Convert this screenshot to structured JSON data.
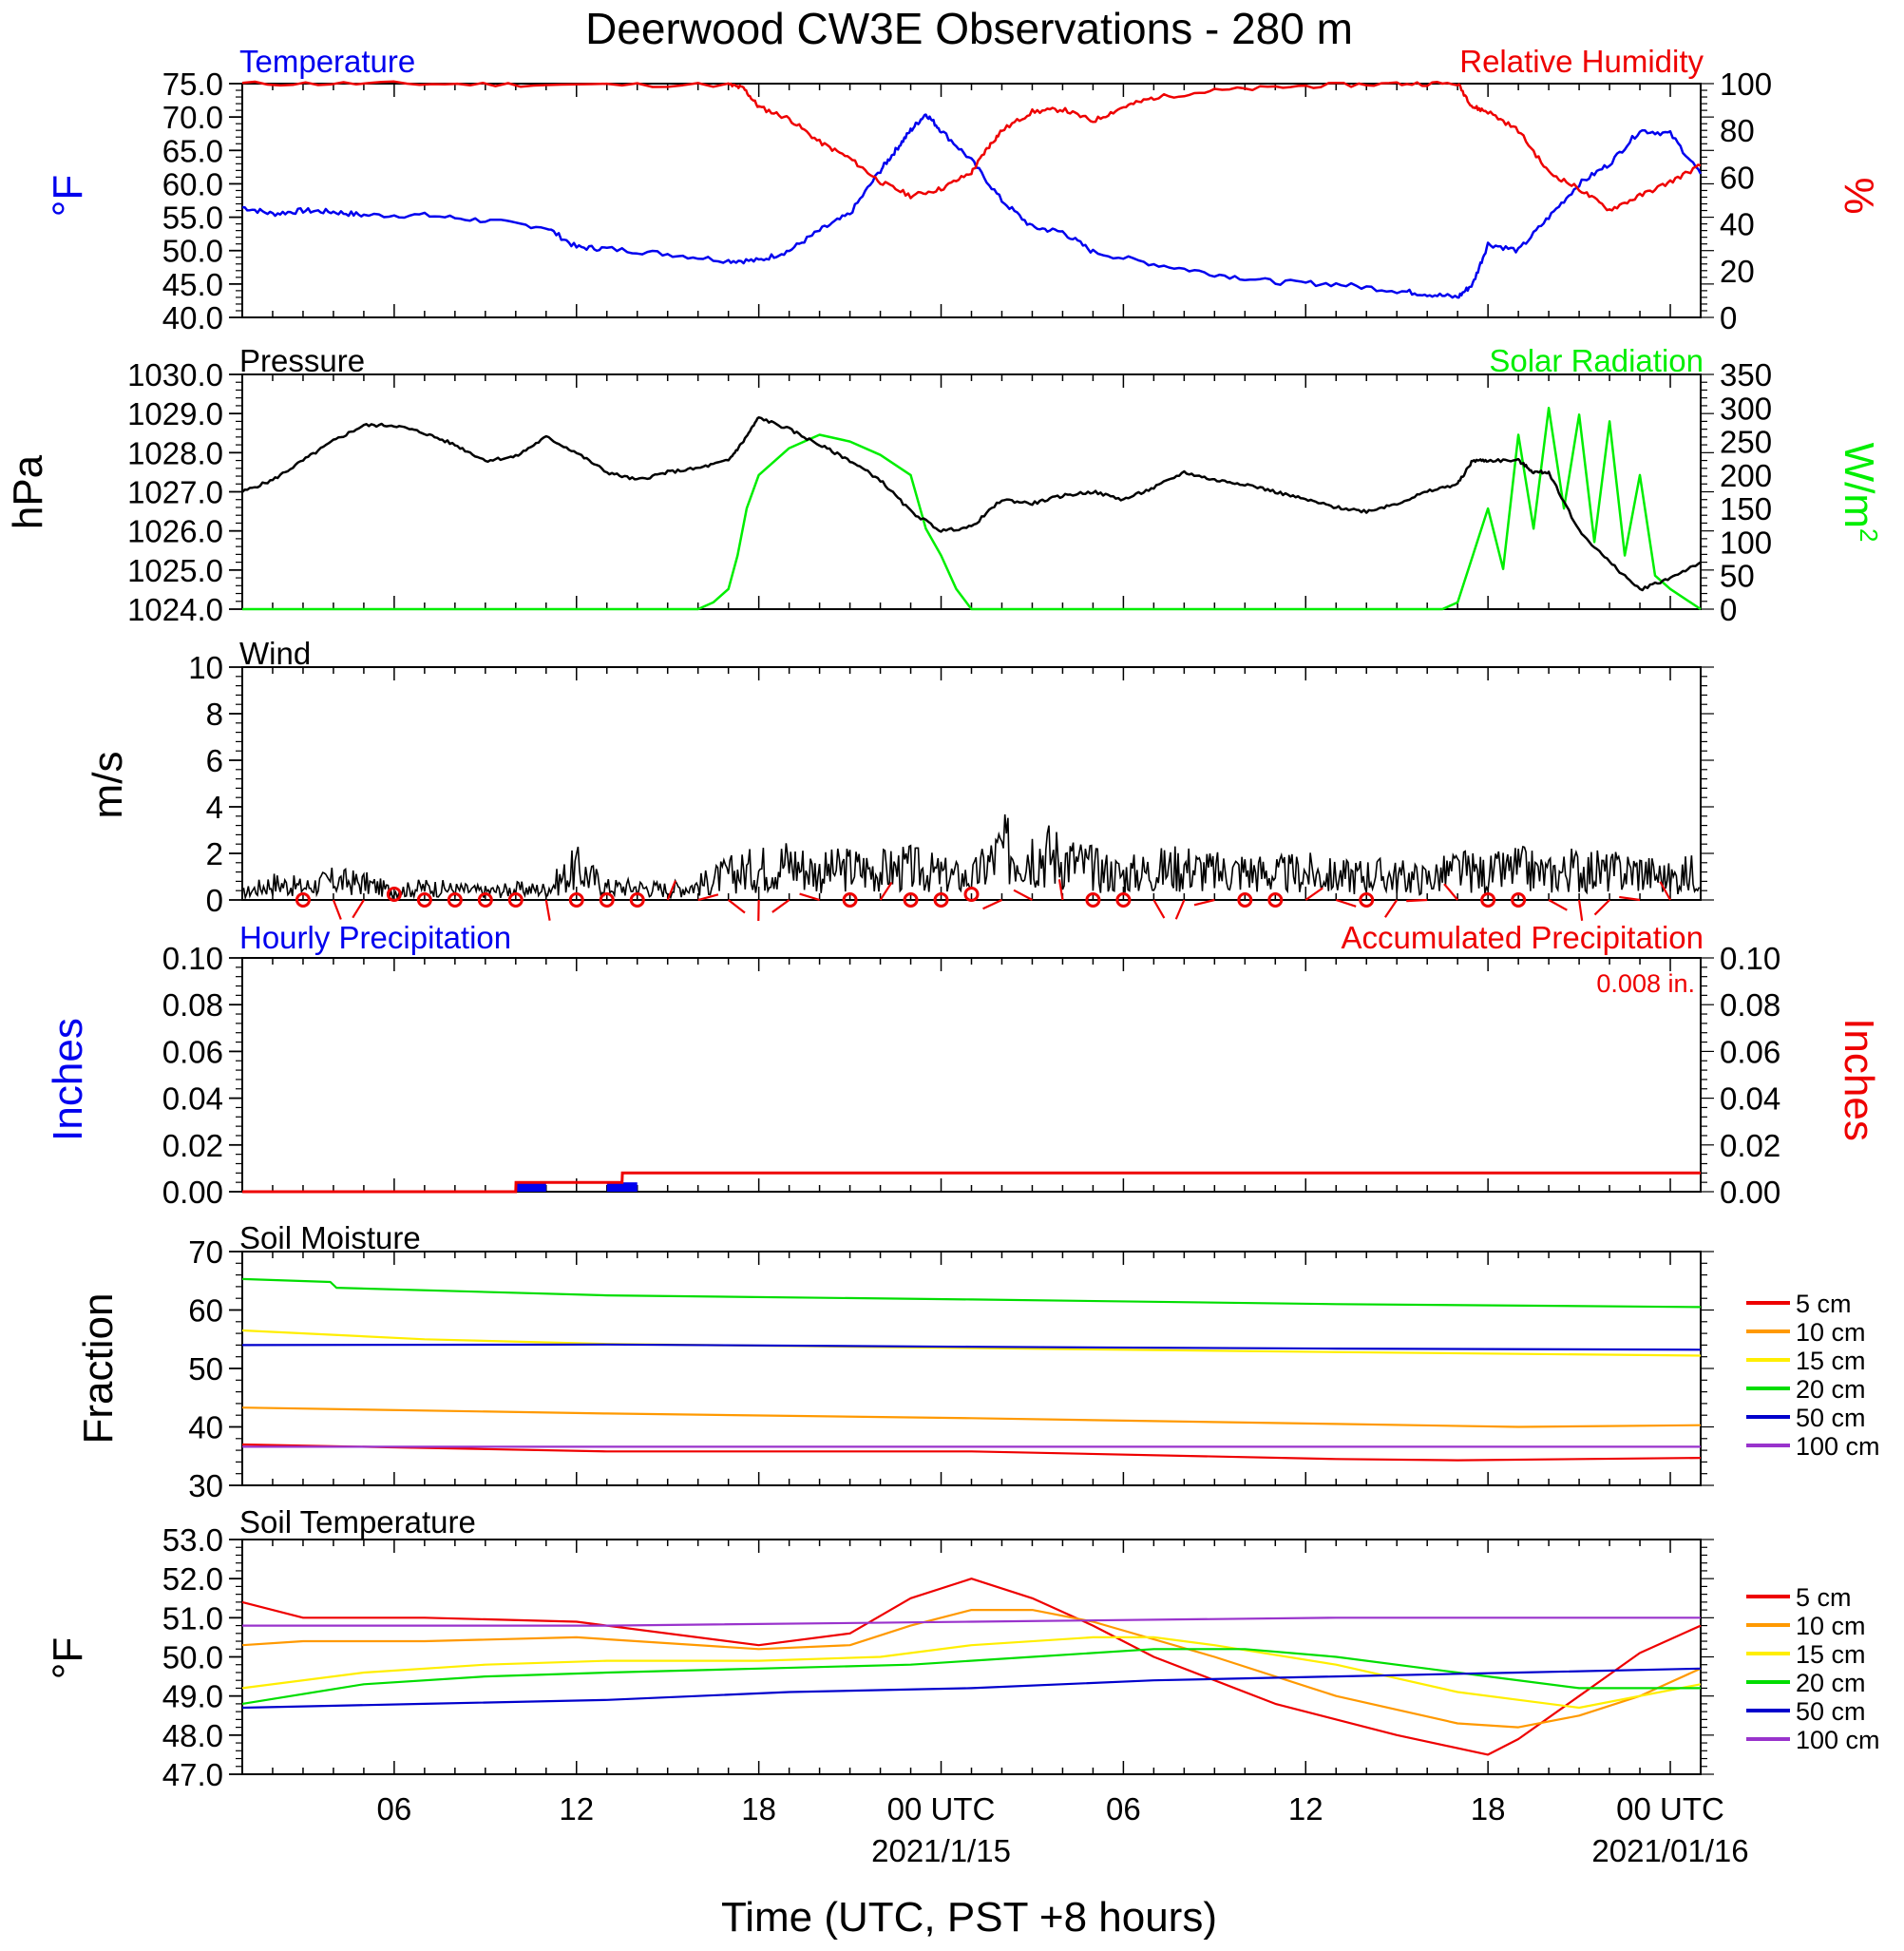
{
  "title": "Deerwood CW3E Observations - 280 m",
  "x_axis": {
    "title": "Time (UTC, PST +8 hours)",
    "range_hours": [
      0,
      48
    ],
    "ticks": [
      {
        "h": 5,
        "label": "06"
      },
      {
        "h": 11,
        "label": "12"
      },
      {
        "h": 17,
        "label": "18"
      },
      {
        "h": 23,
        "label": "00 UTC"
      },
      {
        "h": 29,
        "label": "06"
      },
      {
        "h": 35,
        "label": "12"
      },
      {
        "h": 41,
        "label": "18"
      },
      {
        "h": 47,
        "label": "00 UTC"
      }
    ],
    "date_labels": [
      {
        "h": 23,
        "label": "2021/1/15"
      },
      {
        "h": 47,
        "label": "2021/01/16"
      }
    ]
  },
  "panels": {
    "temp": {
      "left_title": "Temperature",
      "right_title": "Relative Humidity",
      "left_unit": "°F",
      "right_unit": "%",
      "left_ticks": [
        "75.0",
        "70.0",
        "65.0",
        "60.0",
        "55.0",
        "50.0",
        "45.0",
        "40.0"
      ],
      "right_ticks": [
        "100",
        "80",
        "60",
        "40",
        "20",
        "0"
      ]
    },
    "pressure": {
      "left_title": "Pressure",
      "right_title": "Solar Radiation",
      "left_unit": "hPa",
      "right_unit": "W/m",
      "right_unit_sup": "2",
      "left_ticks": [
        "1030.0",
        "1029.0",
        "1028.0",
        "1027.0",
        "1026.0",
        "1025.0",
        "1024.0"
      ],
      "right_ticks": [
        "350",
        "300",
        "250",
        "200",
        "150",
        "100",
        "50",
        "0"
      ]
    },
    "wind": {
      "left_title": "Wind",
      "left_unit": "m/s",
      "left_ticks": [
        "10",
        "8",
        "6",
        "4",
        "2",
        "0"
      ]
    },
    "precip": {
      "left_title": "Hourly Precipitation",
      "right_title": "Accumulated Precipitation",
      "total_label": "0.008 in.",
      "left_unit": "Inches",
      "right_unit": "Inches",
      "ticks": [
        "0.10",
        "0.08",
        "0.06",
        "0.04",
        "0.02",
        "0.00"
      ]
    },
    "soil_moisture": {
      "left_title": "Soil Moisture",
      "left_unit": "Fraction",
      "left_ticks": [
        "70",
        "60",
        "50",
        "40",
        "30"
      ]
    },
    "soil_temp": {
      "left_title": "Soil Temperature",
      "left_unit": "°F",
      "left_ticks": [
        "53.0",
        "52.0",
        "51.0",
        "50.0",
        "49.0",
        "48.0",
        "47.0"
      ]
    }
  },
  "legend": [
    {
      "label": "5 cm",
      "color": "#ee0000"
    },
    {
      "label": "10 cm",
      "color": "#ff9900"
    },
    {
      "label": "15 cm",
      "color": "#ffee00"
    },
    {
      "label": "20 cm",
      "color": "#00dd00"
    },
    {
      "label": "50 cm",
      "color": "#0000cc"
    },
    {
      "label": "100 cm",
      "color": "#9933cc"
    }
  ],
  "colors": {
    "temperature": "#0000ee",
    "humidity": "#ee0000",
    "pressure": "#000000",
    "solar": "#00ee00",
    "wind": "#000000",
    "wind_barb": "#ee0000",
    "hourly_precip": "#0000ee",
    "accum_precip": "#ee0000"
  },
  "chart_data": [
    {
      "type": "line",
      "panel": "temp",
      "xlabel": "Time (UTC, PST +8 hours)",
      "ylim_left": [
        40,
        75
      ],
      "ylim_right": [
        0,
        100
      ],
      "series": [
        {
          "name": "Temperature",
          "axis": "left",
          "x": [
            0,
            1,
            2,
            3,
            4,
            6,
            8,
            10,
            11,
            12,
            14,
            16,
            17,
            18,
            19,
            20,
            21,
            21.5,
            22,
            22.5,
            23,
            24,
            25,
            26,
            27,
            28,
            30,
            32,
            34,
            36,
            38,
            39,
            40,
            40.5,
            41,
            42,
            43,
            44,
            45,
            46,
            47,
            48
          ],
          "y": [
            56.5,
            55.5,
            56,
            55.8,
            55.3,
            55.3,
            54.5,
            53.5,
            50.5,
            50.3,
            49.5,
            48.5,
            48.5,
            50,
            53,
            55.5,
            62,
            65,
            68,
            70.5,
            68,
            63.5,
            57.5,
            53.5,
            52.8,
            49.8,
            48,
            46.5,
            45.3,
            45,
            44,
            43.5,
            43,
            45,
            51,
            50,
            55,
            60,
            63,
            68,
            67.5,
            61.5
          ]
        },
        {
          "name": "Relative Humidity",
          "axis": "right",
          "x": [
            0,
            5,
            10,
            16,
            16.5,
            17,
            18,
            19,
            20,
            21,
            22,
            23,
            24,
            24.5,
            25,
            26,
            27,
            28,
            29,
            30,
            32,
            35,
            38,
            40,
            40.5,
            41,
            42,
            43,
            44,
            45,
            46,
            47,
            48
          ],
          "y": [
            100,
            100,
            99.5,
            99.5,
            98,
            90,
            85,
            75,
            68,
            58,
            52,
            55,
            62,
            72,
            80,
            88,
            89,
            84,
            90,
            94,
            97,
            99,
            100,
            100,
            90,
            88,
            80,
            62,
            55,
            46,
            52,
            58,
            65
          ]
        }
      ]
    },
    {
      "type": "line",
      "panel": "pressure",
      "ylim_left": [
        1024,
        1030
      ],
      "ylim_right": [
        0,
        350
      ],
      "series": [
        {
          "name": "Pressure",
          "axis": "left",
          "x": [
            0,
            1,
            2,
            3,
            4,
            5,
            6,
            7,
            8,
            9,
            10,
            11,
            12,
            13,
            14,
            15,
            16,
            16.5,
            17,
            18,
            19,
            20,
            21,
            22,
            23,
            24,
            25,
            26,
            27,
            28,
            29,
            30,
            31,
            32,
            33,
            34,
            35,
            36,
            37,
            38,
            39,
            40,
            40.5,
            41,
            42,
            42.5,
            43,
            44,
            45,
            46,
            47,
            48
          ],
          "y": [
            1027,
            1027.3,
            1027.8,
            1028.3,
            1028.7,
            1028.7,
            1028.5,
            1028.2,
            1027.8,
            1027.9,
            1028.4,
            1028,
            1027.5,
            1027.3,
            1027.5,
            1027.6,
            1027.8,
            1028.3,
            1028.9,
            1028.6,
            1028.2,
            1027.8,
            1027.3,
            1026.5,
            1026,
            1026.1,
            1026.8,
            1026.7,
            1026.9,
            1027,
            1026.8,
            1027.1,
            1027.5,
            1027.3,
            1027.2,
            1027,
            1026.8,
            1026.6,
            1026.5,
            1026.7,
            1027,
            1027.2,
            1027.8,
            1027.8,
            1027.8,
            1027.5,
            1027.5,
            1026,
            1025.2,
            1024.5,
            1024.8,
            1025.2
          ]
        },
        {
          "name": "Solar Radiation",
          "axis": "right",
          "x": [
            0,
            13,
            14,
            15,
            15.5,
            16,
            16.3,
            16.6,
            17,
            18,
            19,
            20,
            21,
            22,
            22.5,
            23,
            23.5,
            24,
            25,
            30,
            35,
            38,
            39.5,
            40,
            40.5,
            41,
            41.5,
            42,
            42.5,
            43,
            43.5,
            44,
            44.5,
            45,
            45.5,
            46,
            46.5,
            47,
            48
          ],
          "y": [
            0,
            0,
            0,
            0,
            10,
            30,
            80,
            150,
            200,
            240,
            260,
            250,
            230,
            200,
            120,
            80,
            30,
            0,
            0,
            0,
            0,
            0,
            0,
            10,
            80,
            150,
            60,
            260,
            120,
            300,
            150,
            290,
            100,
            280,
            80,
            200,
            50,
            30,
            0
          ]
        }
      ]
    },
    {
      "type": "line",
      "panel": "wind",
      "ylim": [
        0,
        10
      ],
      "series": [
        {
          "name": "Wind",
          "x": [
            0,
            1,
            2,
            3,
            4,
            5,
            6,
            7,
            8,
            9,
            10,
            11,
            12,
            13,
            14,
            15,
            16,
            17,
            18,
            19,
            20,
            21,
            22,
            23,
            24,
            25,
            26,
            27,
            28,
            29,
            30,
            31,
            32,
            33,
            34,
            35,
            36,
            37,
            38,
            39,
            40,
            41,
            42,
            43,
            44,
            45,
            46,
            47,
            48
          ],
          "y": [
            0.3,
            0.8,
            0.6,
            0.9,
            0.8,
            0.4,
            0.6,
            0.5,
            0.4,
            0.5,
            0.5,
            1.5,
            0.6,
            0.6,
            0.5,
            0.7,
            1.2,
            1.5,
            1.8,
            1.3,
            1.5,
            1.4,
            1.5,
            1.2,
            1.0,
            2.3,
            2.4,
            2.0,
            1.5,
            1.2,
            1.4,
            1.6,
            1.3,
            1.4,
            1.2,
            1.3,
            1.1,
            1.2,
            1.1,
            1.0,
            1.4,
            1.2,
            1.5,
            1.2,
            1.5,
            1.3,
            1.4,
            1.0,
            1.4
          ]
        }
      ]
    },
    {
      "type": "bar",
      "panel": "precip",
      "ylim": [
        0,
        0.1
      ],
      "series": [
        {
          "name": "Hourly Precipitation",
          "x": [
            9,
            12
          ],
          "values": [
            0.004,
            0.004
          ]
        },
        {
          "name": "Accumulated Precipitation",
          "x": [
            0,
            9,
            9.01,
            12.5,
            12.51,
            48
          ],
          "values": [
            0,
            0,
            0.004,
            0.004,
            0.008,
            0.008
          ]
        }
      ]
    },
    {
      "type": "line",
      "panel": "soil_moisture",
      "ylim": [
        30,
        70
      ],
      "series": [
        {
          "name": "5 cm",
          "x": [
            0,
            12,
            24,
            36,
            40,
            48
          ],
          "y": [
            37,
            35.8,
            35.8,
            34.5,
            34.3,
            34.7
          ]
        },
        {
          "name": "10 cm",
          "x": [
            0,
            12,
            24,
            36,
            42,
            48
          ],
          "y": [
            43.3,
            42.3,
            41.5,
            40.5,
            40.0,
            40.3
          ]
        },
        {
          "name": "15 cm",
          "x": [
            0,
            6,
            12,
            24,
            36,
            48
          ],
          "y": [
            56.5,
            55,
            54.2,
            53.5,
            52.8,
            52.2
          ]
        },
        {
          "name": "20 cm",
          "x": [
            0,
            2.9,
            3.1,
            12,
            24,
            36,
            48
          ],
          "y": [
            65.3,
            64.8,
            63.8,
            62.5,
            61.8,
            61.0,
            60.5
          ]
        },
        {
          "name": "50 cm",
          "x": [
            0,
            12,
            24,
            36,
            48
          ],
          "y": [
            54.0,
            54.1,
            53.7,
            53.4,
            53.2
          ]
        },
        {
          "name": "100 cm",
          "x": [
            0,
            12,
            24,
            36,
            48
          ],
          "y": [
            36.6,
            36.6,
            36.6,
            36.6,
            36.6
          ]
        }
      ]
    },
    {
      "type": "line",
      "panel": "soil_temp",
      "ylim": [
        47,
        53
      ],
      "series": [
        {
          "name": "5 cm",
          "x": [
            0,
            2,
            6,
            11,
            17,
            20,
            22,
            24,
            26,
            28,
            30,
            34,
            38,
            41,
            42,
            44,
            46,
            48
          ],
          "y": [
            51.4,
            51.0,
            51.0,
            50.9,
            50.3,
            50.6,
            51.5,
            52.0,
            51.5,
            50.8,
            50.0,
            48.8,
            48.0,
            47.5,
            47.9,
            49.0,
            50.1,
            50.8
          ]
        },
        {
          "name": "10 cm",
          "x": [
            0,
            2,
            6,
            11,
            17,
            20,
            22,
            24,
            26,
            28,
            32,
            36,
            40,
            42,
            44,
            46,
            48
          ],
          "y": [
            50.3,
            50.4,
            50.4,
            50.5,
            50.2,
            50.3,
            50.8,
            51.2,
            51.2,
            50.9,
            50.0,
            49.0,
            48.3,
            48.2,
            48.5,
            49.0,
            49.7
          ]
        },
        {
          "name": "15 cm",
          "x": [
            0,
            4,
            8,
            12,
            17,
            21,
            24,
            28,
            30,
            32,
            36,
            40,
            44,
            48
          ],
          "y": [
            49.2,
            49.6,
            49.8,
            49.9,
            49.9,
            50.0,
            50.3,
            50.5,
            50.5,
            50.3,
            49.8,
            49.1,
            48.7,
            49.3
          ]
        },
        {
          "name": "20 cm",
          "x": [
            0,
            4,
            8,
            12,
            17,
            22,
            26,
            30,
            33,
            36,
            40,
            44,
            48
          ],
          "y": [
            48.8,
            49.3,
            49.5,
            49.6,
            49.7,
            49.8,
            50.0,
            50.2,
            50.2,
            50.0,
            49.6,
            49.2,
            49.2
          ]
        },
        {
          "name": "50 cm",
          "x": [
            0,
            6,
            12,
            18,
            24,
            30,
            36,
            42,
            48
          ],
          "y": [
            48.7,
            48.8,
            48.9,
            49.1,
            49.2,
            49.4,
            49.5,
            49.6,
            49.7
          ]
        },
        {
          "name": "100 cm",
          "x": [
            0,
            12,
            24,
            36,
            48
          ],
          "y": [
            50.8,
            50.8,
            50.9,
            51.0,
            51.0
          ]
        }
      ]
    }
  ]
}
